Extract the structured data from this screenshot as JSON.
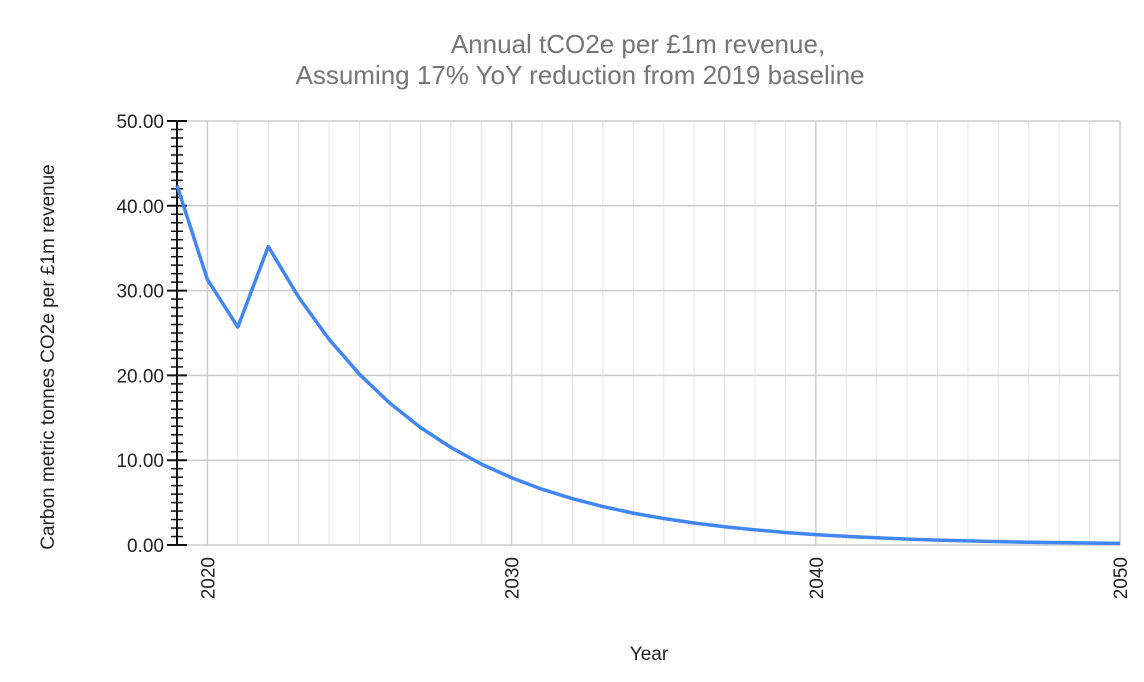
{
  "chart_data": {
    "type": "line",
    "title": "Annual tCO2e per £1m revenue,",
    "subtitle": "Assuming 17% YoY reduction from 2019 baseline",
    "xlabel": "Year",
    "ylabel": "Carbon metric tonnes CO2e per £1m revenue",
    "xlim": [
      2019,
      2050
    ],
    "ylim": [
      0,
      50
    ],
    "x_ticks": [
      "2020",
      "2030",
      "2040",
      "2050"
    ],
    "y_ticks": [
      "0.00",
      "10.00",
      "20.00",
      "30.00",
      "40.00",
      "50.00"
    ],
    "grid": true,
    "legend": "none",
    "series": [
      {
        "color": "#4285f4",
        "x": [
          2019,
          2020,
          2021,
          2022,
          2023,
          2024,
          2025,
          2026,
          2027,
          2028,
          2029,
          2030,
          2031,
          2032,
          2033,
          2034,
          2035,
          2036,
          2037,
          2038,
          2039,
          2040,
          2041,
          2042,
          2043,
          2044,
          2045,
          2046,
          2047,
          2048,
          2049,
          2050
        ],
        "values": [
          42.4,
          31.3,
          25.7,
          35.2,
          29.22,
          24.25,
          20.13,
          16.71,
          13.87,
          11.51,
          9.55,
          7.93,
          6.58,
          5.46,
          4.53,
          3.76,
          3.12,
          2.59,
          2.15,
          1.79,
          1.48,
          1.23,
          1.02,
          0.85,
          0.7,
          0.58,
          0.48,
          0.4,
          0.33,
          0.28,
          0.23,
          0.19
        ]
      }
    ]
  }
}
